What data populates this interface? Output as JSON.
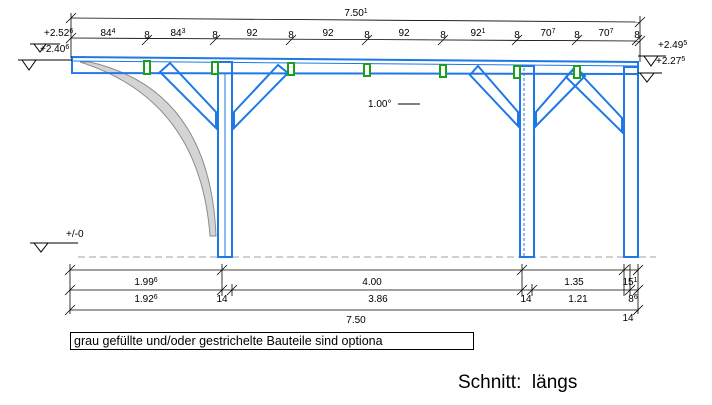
{
  "drawing": {
    "top_total": {
      "base": "7.50",
      "sup": "1"
    },
    "top_segments": [
      {
        "base": "84",
        "sup": "4"
      },
      {
        "base": "84",
        "sup": "3"
      },
      {
        "base": "92",
        "sup": ""
      },
      {
        "base": "92",
        "sup": ""
      },
      {
        "base": "92",
        "sup": ""
      },
      {
        "base": "92",
        "sup": "1"
      },
      {
        "base": "70",
        "sup": "7"
      },
      {
        "base": "70",
        "sup": "7"
      }
    ],
    "top_eight": "8",
    "left_levels": [
      {
        "base": "+2.52",
        "sup": "6"
      },
      {
        "base": "+2.40",
        "sup": "6"
      }
    ],
    "right_levels": [
      {
        "base": "+2.49",
        "sup": "5"
      },
      {
        "base": "+2.27",
        "sup": "5"
      }
    ],
    "slope": "1.00°",
    "ground_level": "+/-0",
    "bottom_row1": [
      {
        "base": "1.99",
        "sup": "6"
      },
      {
        "base": "4.00",
        "sup": ""
      },
      {
        "base": "1.35",
        "sup": ""
      },
      {
        "base": "15",
        "sup": "1"
      }
    ],
    "bottom_row2": [
      {
        "base": "1.92",
        "sup": "6"
      },
      {
        "base": "14",
        "sup": ""
      },
      {
        "base": "3.86",
        "sup": ""
      },
      {
        "base": "14",
        "sup": ""
      },
      {
        "base": "1.21",
        "sup": ""
      },
      {
        "base": "8",
        "sup": "6"
      }
    ],
    "bottom_total": "7.50",
    "bottom_extra": "14"
  },
  "note": "grau gefüllte und/oder gestrichelte Bauteile sind optiona",
  "section_title": "Schnitt:  längs",
  "colors": {
    "structure": "#1e78e6",
    "blocks": "#1aa01a",
    "optional_fill": "#d4d4d4",
    "optional_stroke": "#8c8c8c",
    "ground": "#a0a0a0",
    "dims": "#000000"
  }
}
